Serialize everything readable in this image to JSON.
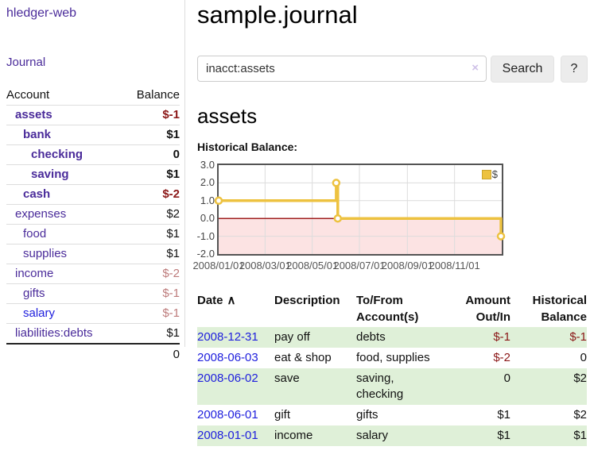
{
  "sidebar": {
    "brand": "hledger-web",
    "nav": {
      "journal_label": "Journal"
    },
    "accounts_table": {
      "headers": [
        "Account",
        "Balance"
      ],
      "rows": [
        {
          "name": "assets",
          "indent": 1,
          "bold": true,
          "balance": "$-1",
          "balance_style": "negstrong"
        },
        {
          "name": "bank",
          "indent": 2,
          "bold": true,
          "balance": "$1",
          "balance_style": "normal"
        },
        {
          "name": "checking",
          "indent": 3,
          "bold": true,
          "balance": "0",
          "balance_style": "normal"
        },
        {
          "name": "saving",
          "indent": 3,
          "bold": true,
          "balance": "$1",
          "balance_style": "normal"
        },
        {
          "name": "cash",
          "indent": 2,
          "bold": true,
          "balance": "$-2",
          "balance_style": "negstrong"
        },
        {
          "name": "expenses",
          "indent": 1,
          "bold": false,
          "balance": "$2",
          "balance_style": "normal"
        },
        {
          "name": "food",
          "indent": 2,
          "bold": false,
          "balance": "$1",
          "balance_style": "normal"
        },
        {
          "name": "supplies",
          "indent": 2,
          "bold": false,
          "balance": "$1",
          "balance_style": "normal"
        },
        {
          "name": "income",
          "indent": 1,
          "bold": false,
          "balance": "$-2",
          "balance_style": "negmuted"
        },
        {
          "name": "gifts",
          "indent": 2,
          "bold": false,
          "balance": "$-1",
          "balance_style": "negmuted"
        },
        {
          "name": "salary",
          "indent": 2,
          "bold": false,
          "blue": true,
          "balance": "$-1",
          "balance_style": "negmuted"
        },
        {
          "name": "liabilities:debts",
          "indent": 1,
          "bold": false,
          "balance": "$1",
          "balance_style": "normal"
        }
      ],
      "total": "0"
    }
  },
  "header": {
    "title": "sample.journal"
  },
  "search": {
    "value": "inacct:assets",
    "clear_icon": "×",
    "button_label": "Search",
    "help_label": "?"
  },
  "account_page": {
    "heading": "assets",
    "chart_label": "Historical Balance:"
  },
  "chart_data": {
    "type": "line",
    "step": true,
    "series": [
      {
        "name": "$",
        "color": "#edc240",
        "points": [
          [
            "2008-01-01",
            1
          ],
          [
            "2008-06-01",
            2
          ],
          [
            "2008-06-03",
            0
          ],
          [
            "2008-12-31",
            -1
          ]
        ]
      }
    ],
    "x_range": [
      "2008-01-01",
      "2009-01-01"
    ],
    "x_ticks": [
      "2008/01/01",
      "2008/03/01",
      "2008/05/01",
      "2008/07/01",
      "2008/09/01",
      "2008/11/01"
    ],
    "y_ticks": [
      3.0,
      2.0,
      1.0,
      0.0,
      -1.0,
      -2.0
    ],
    "ylim": [
      -2,
      3
    ],
    "grid_color": "#dcdcdc",
    "zero_line_color": "#a02020",
    "negative_region_color": "#fce3e3",
    "legend": {
      "label": "$",
      "position": "top-right"
    }
  },
  "register_table": {
    "headers": [
      {
        "label": "Date",
        "sort_icon": "∧"
      },
      {
        "label": "Description"
      },
      {
        "label": "To/From Account(s)"
      },
      {
        "label": "Amount Out/In"
      },
      {
        "label": "Historical Balance"
      }
    ],
    "rows": [
      {
        "date": "2008-12-31",
        "description": "pay off",
        "accounts": "debts",
        "amount": "$-1",
        "amount_neg": true,
        "balance": "$-1",
        "balance_neg": true
      },
      {
        "date": "2008-06-03",
        "description": "eat & shop",
        "accounts": "food, supplies",
        "amount": "$-2",
        "amount_neg": true,
        "balance": "0",
        "balance_neg": false
      },
      {
        "date": "2008-06-02",
        "description": "save",
        "accounts": "saving,\nchecking",
        "amount": "0",
        "amount_neg": false,
        "balance": "$2",
        "balance_neg": false
      },
      {
        "date": "2008-06-01",
        "description": "gift",
        "accounts": "gifts",
        "amount": "$1",
        "amount_neg": false,
        "balance": "$2",
        "balance_neg": false
      },
      {
        "date": "2008-01-01",
        "description": "income",
        "accounts": "salary",
        "amount": "$1",
        "amount_neg": false,
        "balance": "$1",
        "balance_neg": false
      }
    ]
  }
}
